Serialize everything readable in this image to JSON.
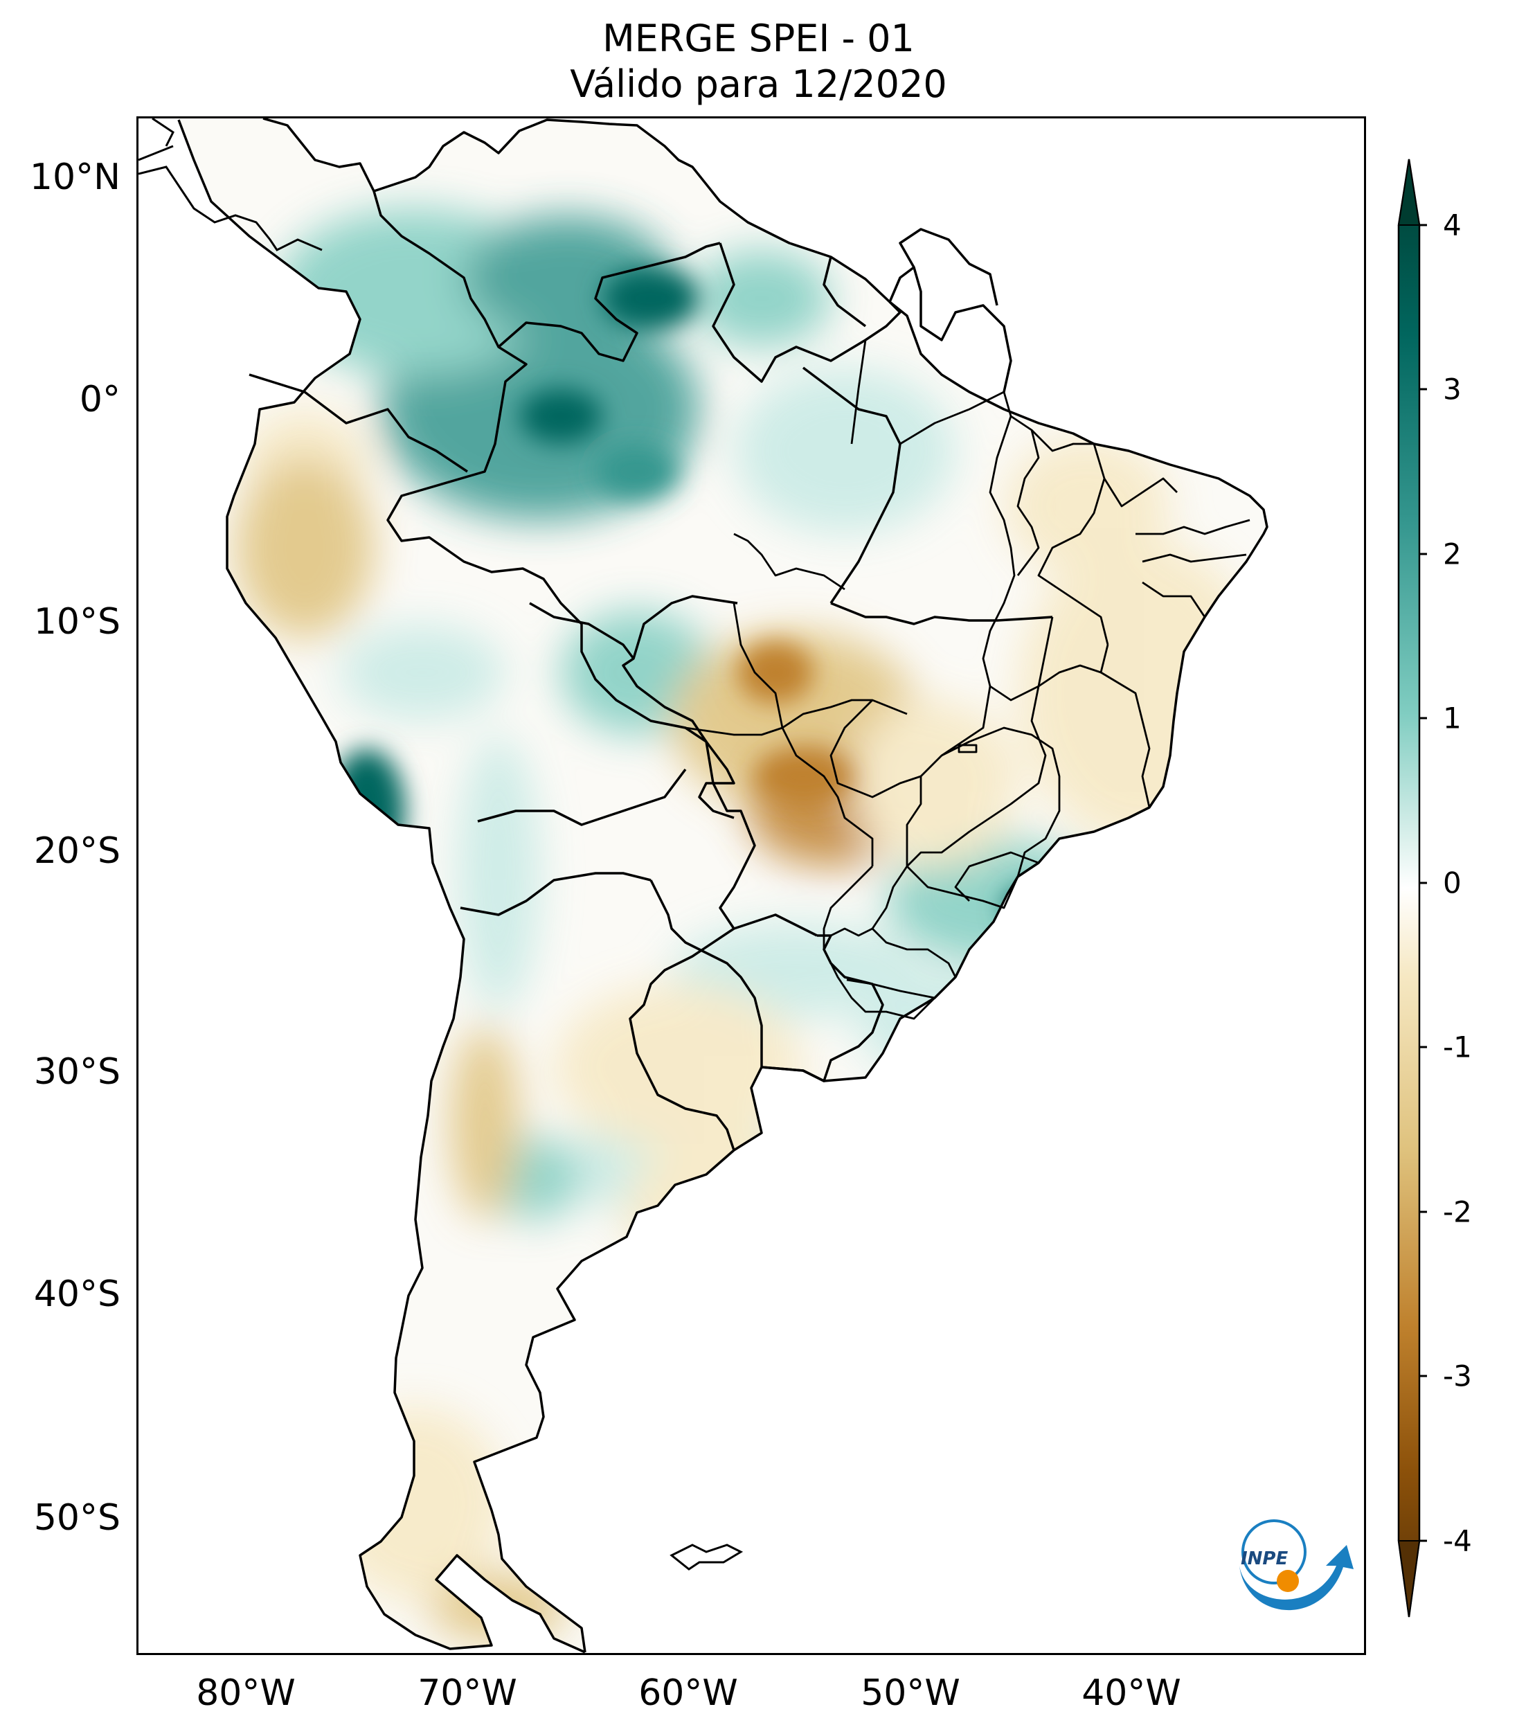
{
  "title": {
    "line1": "MERGE   SPEI - 01",
    "line2": "Válido para 12/2020"
  },
  "map": {
    "region": "South America",
    "lon_range": [
      -85,
      -29
    ],
    "lat_range": [
      -56,
      13
    ],
    "lat_labels": [
      "10°N",
      "0°",
      "10°S",
      "20°S",
      "30°S",
      "40°S",
      "50°S"
    ],
    "lon_labels": [
      "80°W",
      "70°W",
      "60°W",
      "50°W",
      "40°W"
    ]
  },
  "colorbar": {
    "min": -4,
    "max": 4,
    "tick_labels": [
      "4",
      "3",
      "2",
      "1",
      "0",
      "-1",
      "-2",
      "-3",
      "-4"
    ],
    "colors": {
      "dry_max": "#543005",
      "dry_mid": "#bf812d",
      "dry_low": "#f6e8c3",
      "neutral": "#ffffff",
      "wet_low": "#c7eae5",
      "wet_mid": "#35978f",
      "wet_max": "#003c30"
    }
  },
  "logo": {
    "text": "INPE"
  }
}
